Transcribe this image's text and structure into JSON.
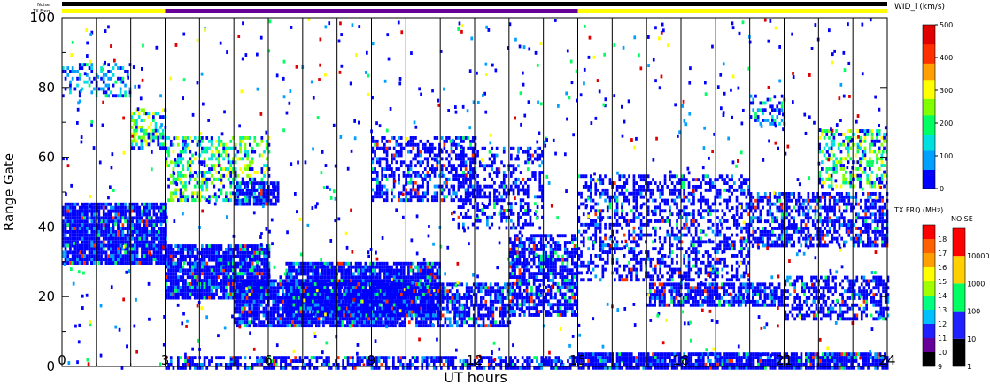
{
  "chart_data": {
    "type": "heatmap",
    "title": "",
    "xlabel": "UT hours",
    "ylabel": "Range Gate",
    "xlim": [
      0,
      24
    ],
    "ylim": [
      0,
      100
    ],
    "x_ticks": [
      "0",
      "3",
      "6",
      "9",
      "12",
      "15",
      "18",
      "21",
      "24"
    ],
    "x_tick_values": [
      0,
      3,
      6,
      9,
      12,
      15,
      18,
      21,
      24
    ],
    "y_ticks": [
      "0",
      "20",
      "40",
      "60",
      "80",
      "100"
    ],
    "y_tick_values": [
      0,
      20,
      40,
      60,
      80,
      100
    ],
    "grid": false,
    "scan_boundaries_hours": [
      1,
      2,
      3,
      4,
      5,
      6,
      7,
      8,
      9,
      10,
      11,
      12,
      13,
      14,
      15,
      16,
      17,
      18,
      19,
      20,
      21,
      22,
      23
    ],
    "status_bars": {
      "noise_label": "Noise",
      "txfreq_label": "TX Freq",
      "noise_segments": [
        {
          "start": 0,
          "end": 24,
          "color": "#000000"
        }
      ],
      "txfreq_segments": [
        {
          "start": 0,
          "end": 3,
          "color": "#ffff00"
        },
        {
          "start": 3,
          "end": 15,
          "color": "#660099"
        },
        {
          "start": 15,
          "end": 24,
          "color": "#ffff00"
        }
      ]
    },
    "echo_regions": [
      {
        "x0": 0,
        "x1": 3,
        "y0": 30,
        "y1": 47,
        "level": 1,
        "density": 0.92
      },
      {
        "x0": 3,
        "x1": 6,
        "y0": 20,
        "y1": 35,
        "level": 1,
        "density": 0.9
      },
      {
        "x0": 3,
        "x1": 6,
        "y0": 48,
        "y1": 66,
        "level": 3,
        "density": 0.45
      },
      {
        "x0": 2,
        "x1": 3,
        "y0": 63,
        "y1": 74,
        "level": 3,
        "density": 0.55
      },
      {
        "x0": 0,
        "x1": 2,
        "y0": 78,
        "y1": 87,
        "level": 2,
        "density": 0.4
      },
      {
        "x0": 5,
        "x1": 10,
        "y0": 12,
        "y1": 25,
        "level": 1,
        "density": 0.9
      },
      {
        "x0": 6.5,
        "x1": 11,
        "y0": 15,
        "y1": 30,
        "level": 1,
        "density": 0.88
      },
      {
        "x0": 10,
        "x1": 13,
        "y0": 12,
        "y1": 24,
        "level": 1,
        "density": 0.7
      },
      {
        "x0": 9,
        "x1": 12,
        "y0": 48,
        "y1": 66,
        "level": 1,
        "density": 0.5
      },
      {
        "x0": 11.5,
        "x1": 14,
        "y0": 40,
        "y1": 63,
        "level": 1,
        "density": 0.4
      },
      {
        "x0": 13,
        "x1": 15,
        "y0": 15,
        "y1": 38,
        "level": 1,
        "density": 0.7
      },
      {
        "x0": 5,
        "x1": 6.3,
        "y0": 47,
        "y1": 53,
        "level": 1,
        "density": 0.8
      },
      {
        "x0": 15,
        "x1": 24,
        "y0": 0,
        "y1": 4,
        "level": 1,
        "density": 0.85
      },
      {
        "x0": 3,
        "x1": 15,
        "y0": 0,
        "y1": 3,
        "level": 1,
        "density": 0.6
      },
      {
        "x0": 15,
        "x1": 20,
        "y0": 25,
        "y1": 55,
        "level": 1,
        "density": 0.45
      },
      {
        "x0": 17,
        "x1": 21,
        "y0": 18,
        "y1": 24,
        "level": 1,
        "density": 0.75
      },
      {
        "x0": 20,
        "x1": 24,
        "y0": 35,
        "y1": 50,
        "level": 1,
        "density": 0.6
      },
      {
        "x0": 21,
        "x1": 24,
        "y0": 14,
        "y1": 26,
        "level": 1,
        "density": 0.55
      },
      {
        "x0": 22,
        "x1": 24,
        "y0": 52,
        "y1": 68,
        "level": 3,
        "density": 0.45
      },
      {
        "x0": 20,
        "x1": 21,
        "y0": 70,
        "y1": 78,
        "level": 2,
        "density": 0.35
      }
    ],
    "colorbars": [
      {
        "title": "WID_l (km/s)",
        "type": "continuous",
        "ticks": [
          "0",
          "100",
          "200",
          "300",
          "400",
          "500"
        ],
        "tick_values": [
          0,
          100,
          200,
          300,
          400,
          500
        ],
        "range": [
          0,
          500
        ],
        "colors": [
          "#0000ff",
          "#00a0ff",
          "#00e0e0",
          "#00ff60",
          "#80ff00",
          "#ffff00",
          "#ffa000",
          "#ff3000",
          "#e00000"
        ]
      },
      {
        "title": "TX FRQ (MHz)",
        "type": "discrete",
        "labels": [
          "9",
          "10",
          "11",
          "12",
          "13",
          "14",
          "15",
          "16",
          "17",
          "18"
        ],
        "colors": [
          "#000000",
          "#660099",
          "#2020ff",
          "#00c0ff",
          "#00ff80",
          "#a0ff00",
          "#ffff00",
          "#ffa000",
          "#ff6000",
          "#ff0000"
        ]
      },
      {
        "title": "NOISE",
        "type": "discrete",
        "labels": [
          "1",
          "10",
          "100",
          "1000",
          "10000"
        ],
        "colors": [
          "#000000",
          "#2020ff",
          "#00ff60",
          "#ffd000",
          "#ff0000"
        ]
      }
    ]
  }
}
